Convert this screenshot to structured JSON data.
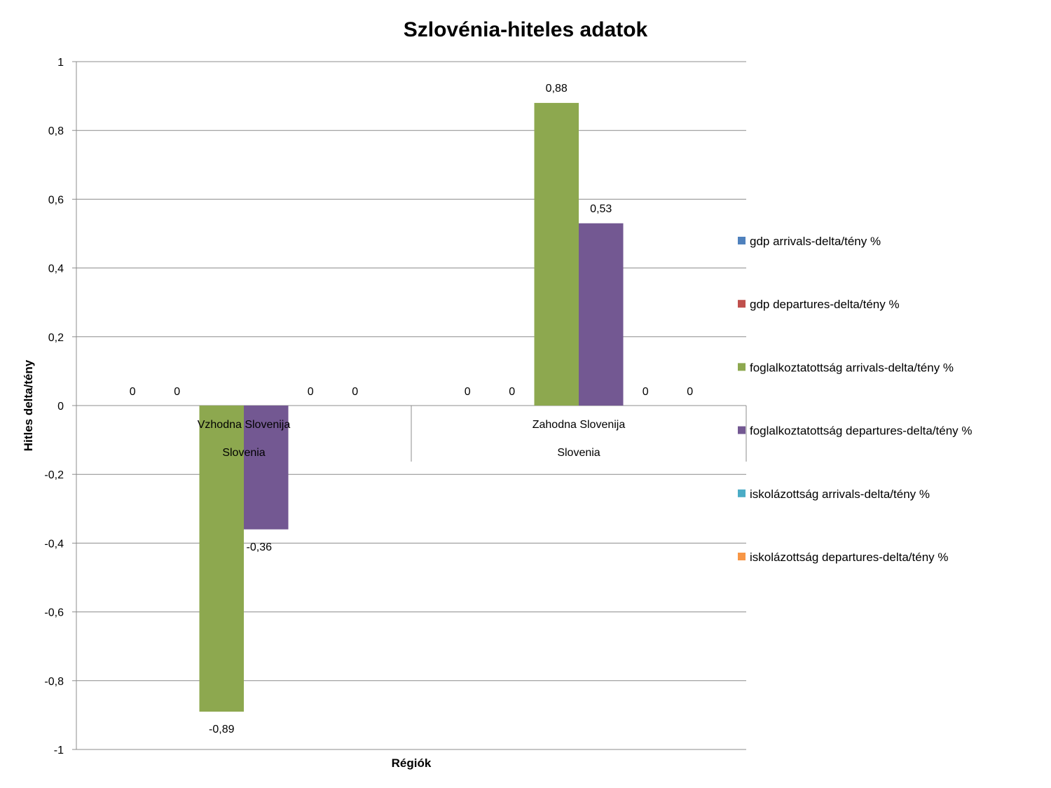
{
  "chart_data": {
    "type": "bar",
    "title": "Szlovénia-hiteles adatok",
    "xlabel": "Régiók",
    "ylabel": "Hitles delta/tény",
    "ylim": [
      -1,
      1
    ],
    "yticks": [
      "1",
      "0,8",
      "0,6",
      "0,4",
      "0,2",
      "0",
      "-0,2",
      "-0,4",
      "-0,6",
      "-0,8",
      "-1"
    ],
    "ytick_values": [
      1,
      0.8,
      0.6,
      0.4,
      0.2,
      0,
      -0.2,
      -0.4,
      -0.6,
      -0.8,
      -1
    ],
    "categories": [
      {
        "name": "Vzhodna Slovenija",
        "group": "Slovenia"
      },
      {
        "name": "Zahodna Slovenija",
        "group": "Slovenia"
      }
    ],
    "series": [
      {
        "name": "gdp arrivals-delta/tény %",
        "color": "#4F81BD",
        "values": [
          0,
          0
        ],
        "labels": [
          "0",
          "0"
        ]
      },
      {
        "name": "gdp departures-delta/tény %",
        "color": "#C0504D",
        "values": [
          0,
          0
        ],
        "labels": [
          "0",
          "0"
        ]
      },
      {
        "name": "foglalkoztatottság arrivals-delta/tény %",
        "color": "#8DA84F",
        "values": [
          -0.89,
          0.88
        ],
        "labels": [
          "-0,89",
          "0,88"
        ]
      },
      {
        "name": "foglalkoztatottság departures-delta/tény %",
        "color": "#735892",
        "values": [
          -0.36,
          0.53
        ],
        "labels": [
          "-0,36",
          "0,53"
        ]
      },
      {
        "name": "iskolázottság arrivals-delta/tény %",
        "color": "#4BACC6",
        "values": [
          0,
          0
        ],
        "labels": [
          "0",
          "0"
        ]
      },
      {
        "name": "iskolázottság departures-delta/tény %",
        "color": "#F79646",
        "values": [
          0,
          0
        ],
        "labels": [
          "0",
          "0"
        ]
      }
    ],
    "grid": true,
    "legend_position": "right"
  }
}
